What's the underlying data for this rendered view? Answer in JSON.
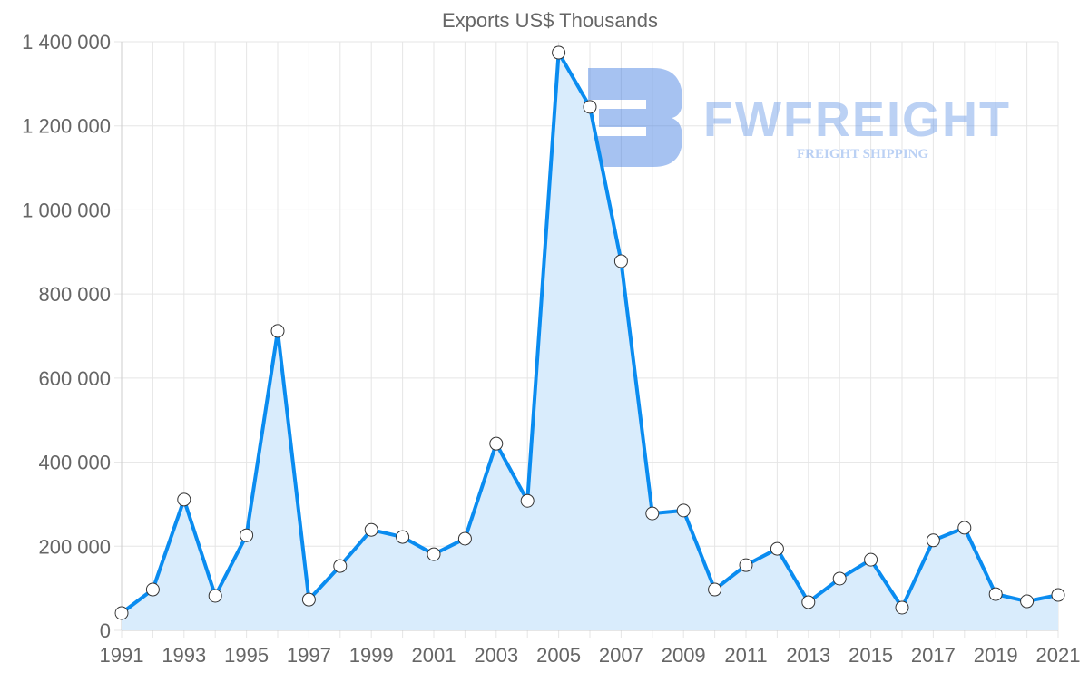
{
  "chart_data": {
    "type": "line",
    "title": "Exports US$ Thousands",
    "xlabel": "",
    "ylabel": "",
    "x": [
      1991,
      1992,
      1993,
      1994,
      1995,
      1996,
      1997,
      1998,
      1999,
      2000,
      2001,
      2002,
      2003,
      2004,
      2005,
      2006,
      2007,
      2008,
      2009,
      2010,
      2011,
      2012,
      2013,
      2014,
      2015,
      2016,
      2017,
      2018,
      2019,
      2020,
      2021
    ],
    "series": [
      {
        "name": "Exports US$ Thousands",
        "values": [
          41000,
          97000,
          311000,
          82000,
          226000,
          712000,
          73000,
          153000,
          239000,
          222000,
          181000,
          218000,
          444000,
          308000,
          1374000,
          1245000,
          878000,
          278000,
          285000,
          97000,
          155000,
          194000,
          67000,
          123000,
          168000,
          54000,
          214000,
          244000,
          86000,
          69000,
          84000
        ]
      }
    ],
    "ylim": [
      0,
      1400000
    ],
    "yticks": [
      "0",
      "200 000",
      "400 000",
      "600 000",
      "800 000",
      "1 000 000",
      "1 200 000",
      "1 400 000"
    ],
    "xticks": [
      "1991",
      "1993",
      "1995",
      "1997",
      "1999",
      "2001",
      "2003",
      "2005",
      "2007",
      "2009",
      "2011",
      "2013",
      "2015",
      "2017",
      "2019",
      "2021"
    ],
    "grid": true,
    "colors": {
      "line": "#0a8cf0",
      "fill": "#d9ecfc"
    }
  },
  "watermark": {
    "brand": "FWFREIGHT",
    "tagline": "FREIGHT SHIPPING"
  }
}
